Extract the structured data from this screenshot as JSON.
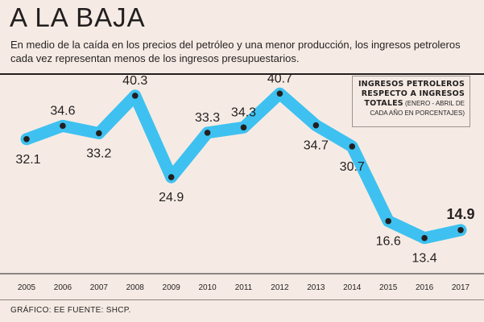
{
  "header": {
    "title": "A LA BAJA",
    "subtitle": "En medio de la caída en los precios del petróleo y una menor producción, los ingresos petroleros cada vez representan menos de los ingresos presupuestarios."
  },
  "legend": {
    "line1": "INGRESOS PETROLEROS",
    "line2": "RESPECTO A INGRESOS",
    "line3_bold": "TOTALES",
    "line3_rest": " (ENERO - ABRIL DE",
    "line4": "CADA AÑO EN PORCENTAJES)"
  },
  "footer": {
    "source": "GRÁFICO: EE  FUENTE: SHCP."
  },
  "colors": {
    "line": "#3ec1f0",
    "marker": "#231f20",
    "background": "#f6ebe4"
  },
  "chart_data": {
    "type": "line",
    "title": "A LA BAJA",
    "x": [
      "2005",
      "2006",
      "2007",
      "2008",
      "2009",
      "2010",
      "2011",
      "2012",
      "2013",
      "2014",
      "2015",
      "2016",
      "2017"
    ],
    "series": [
      {
        "values": [
          32.1,
          34.6,
          33.2,
          40.3,
          24.9,
          33.3,
          34.3,
          40.7,
          34.7,
          30.7,
          16.6,
          13.4,
          14.9
        ]
      }
    ],
    "labels": [
      "32.1",
      "34.6",
      "33.2",
      "40.3",
      "24.9",
      "33.3",
      "34.3",
      "40.7",
      "34.7",
      "30.7",
      "16.6",
      "13.4",
      "14.9"
    ],
    "label_position": [
      "below",
      "above",
      "below",
      "above",
      "below",
      "above",
      "above",
      "above",
      "below",
      "below",
      "below",
      "below",
      "above"
    ],
    "highlight_index": 12,
    "ylim": [
      10,
      45
    ],
    "grid": false
  }
}
